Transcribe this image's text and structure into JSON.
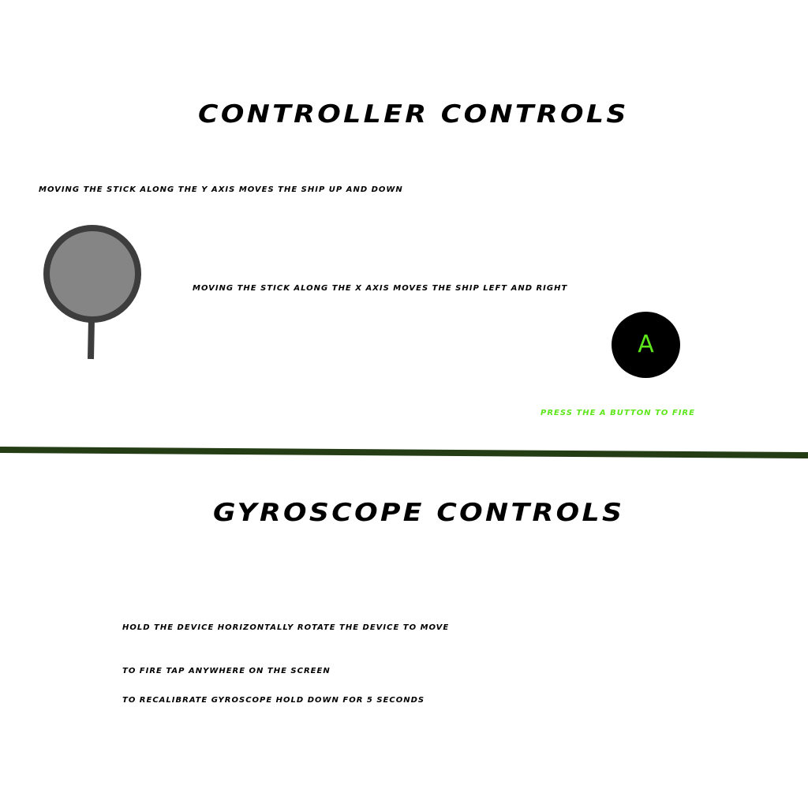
{
  "controller_section": {
    "title": "CONTROLLER CONTROLS",
    "y_axis_note": "MOVING THE STICK ALONG THE Y AXIS MOVES THE SHIP UP AND DOWN",
    "x_axis_note": "MOVING THE STICK ALONG THE X AXIS MOVES THE SHIP LEFT AND RIGHT",
    "a_button_label": "A",
    "fire_note": "PRESS THE A BUTTON TO FIRE"
  },
  "gyroscope_section": {
    "title": "GYROSCOPE CONTROLS",
    "hold_note": "HOLD THE DEVICE HORIZONTALLY ROTATE THE DEVICE TO MOVE",
    "tap_note": "TO FIRE TAP ANYWHERE ON THE SCREEN",
    "recalibrate_note": "TO RECALIBRATE GYROSCOPE HOLD DOWN FOR 5 SECONDS"
  },
  "icons": {
    "joystick": "joystick-icon",
    "divider": "divider-line"
  },
  "colors": {
    "background": "#ffffff",
    "text": "#000000",
    "accent_green": "#5de61a",
    "divider": "#243d15",
    "stick_fill": "#858585",
    "stick_outline": "#3d3d3d",
    "button_fill": "#000000"
  }
}
